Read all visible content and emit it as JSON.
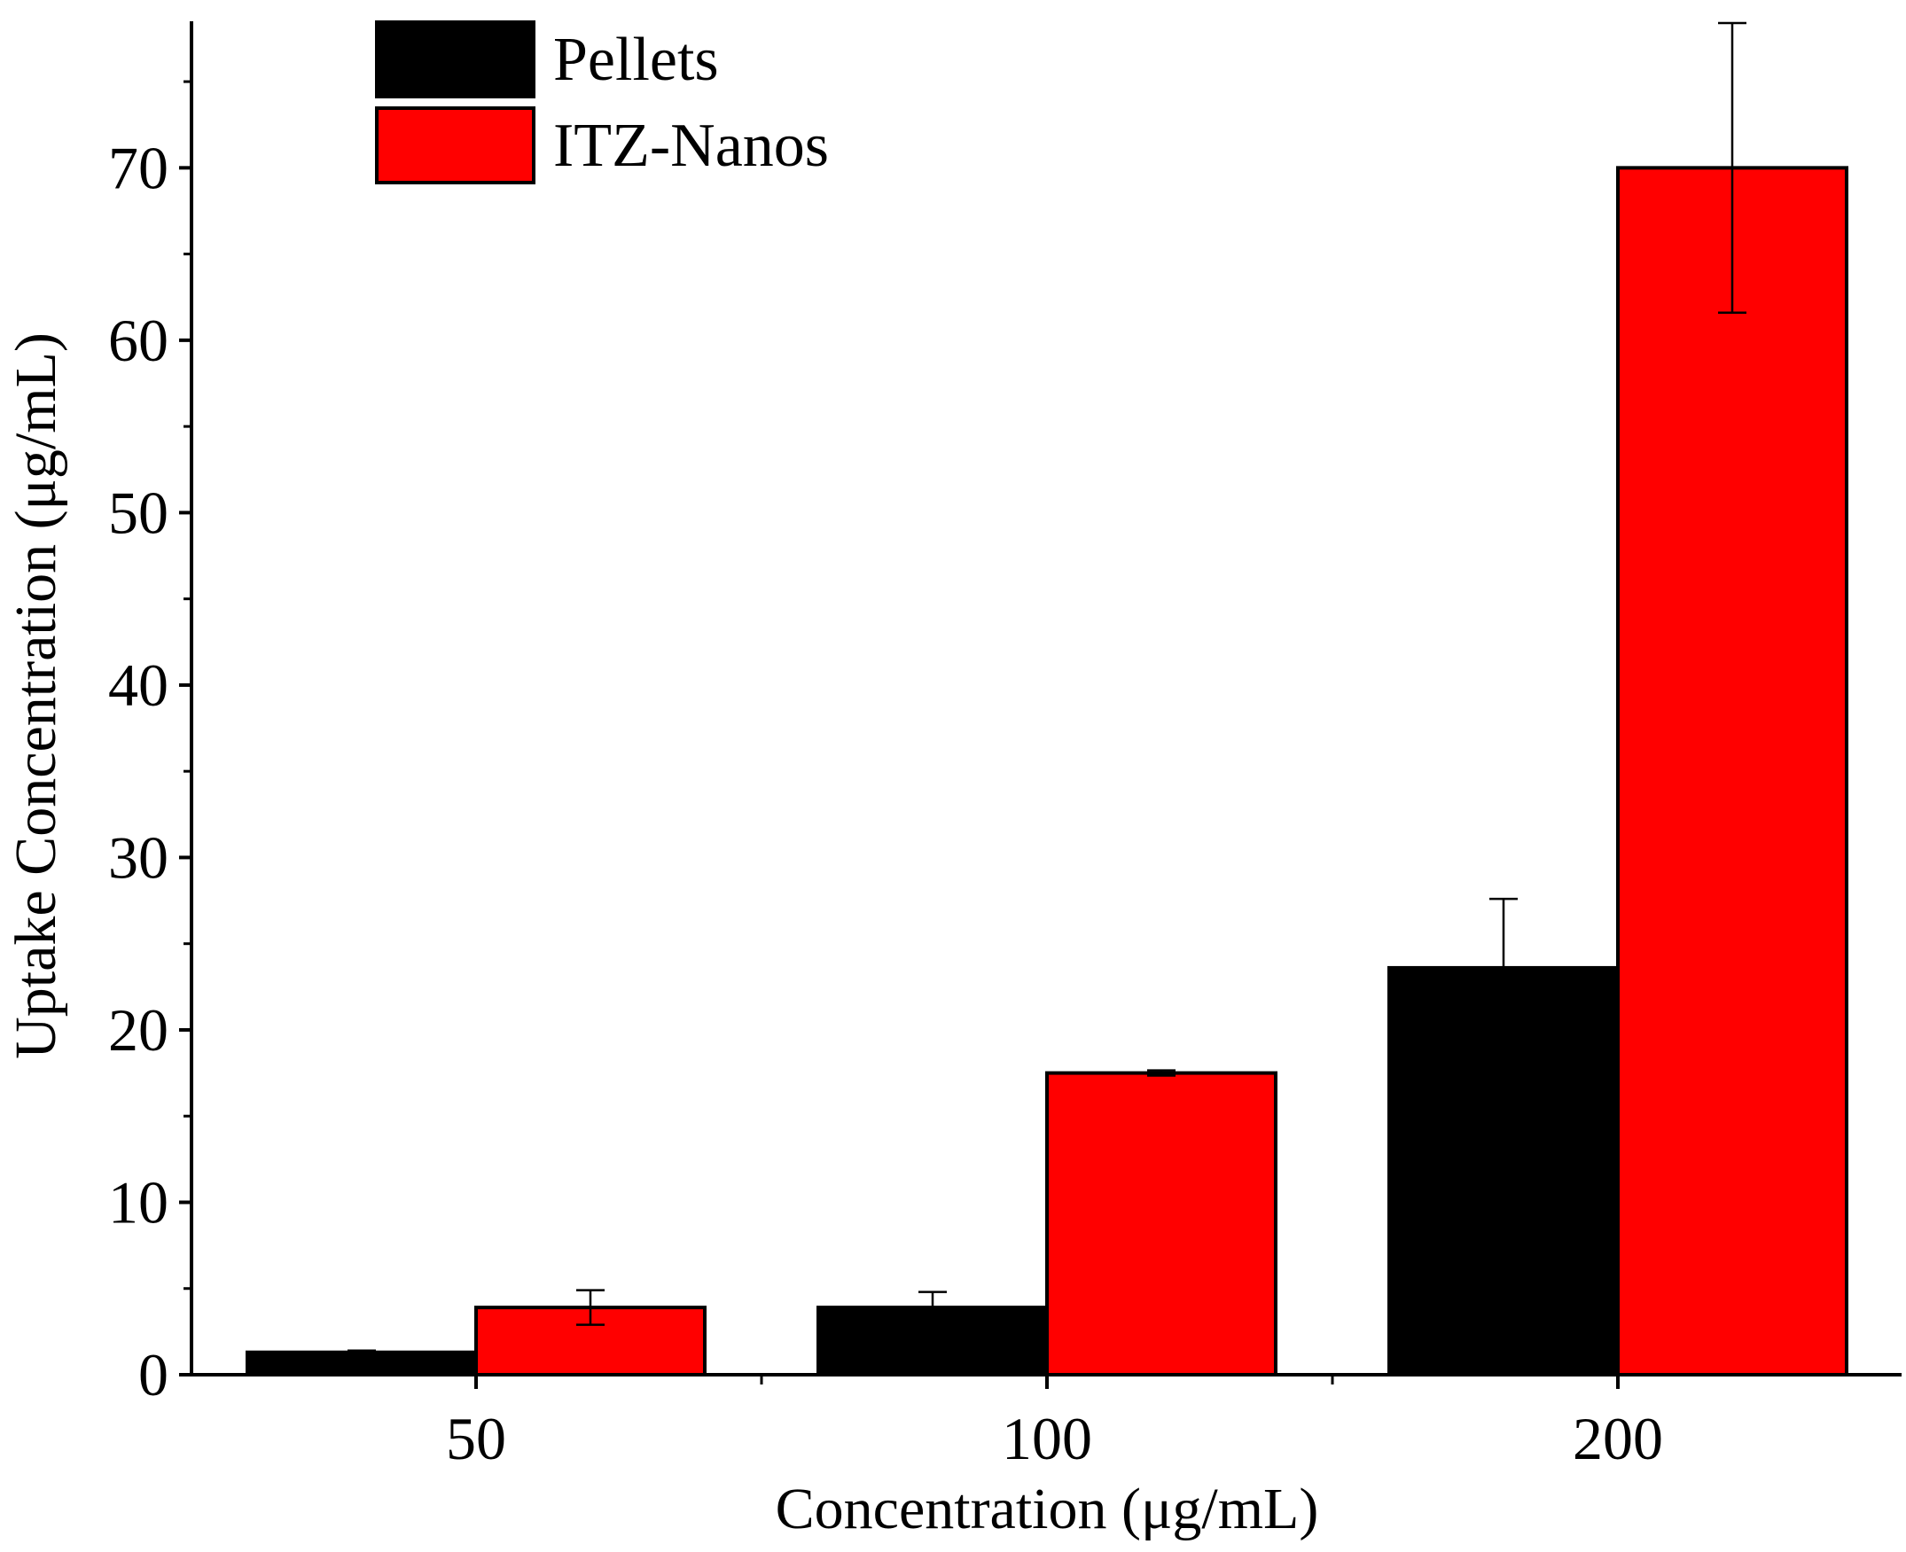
{
  "chart_data": {
    "type": "bar",
    "title": "",
    "xlabel": "Concentration (μg/mL)",
    "ylabel": "Uptake Concentration (μg/mL)",
    "categories": [
      "50",
      "100",
      "200"
    ],
    "ylim": [
      0,
      78.5
    ],
    "yticks": [
      0,
      10,
      20,
      30,
      40,
      50,
      60,
      70
    ],
    "ytick_labels": [
      "0",
      "10",
      "20",
      "30",
      "40",
      "50",
      "60",
      "70"
    ],
    "series": [
      {
        "name": "Pellets",
        "color": "#000000",
        "values": [
          1.3,
          3.9,
          23.6
        ],
        "errors": [
          0.1,
          0.9,
          4.0
        ]
      },
      {
        "name": "ITZ-Nanos",
        "color": "#ff0000",
        "values": [
          3.9,
          17.5,
          70.0
        ],
        "errors": [
          1.0,
          0.15,
          8.4
        ]
      }
    ],
    "legend": {
      "position": "top-left"
    },
    "error_bars": true,
    "grid": false
  }
}
